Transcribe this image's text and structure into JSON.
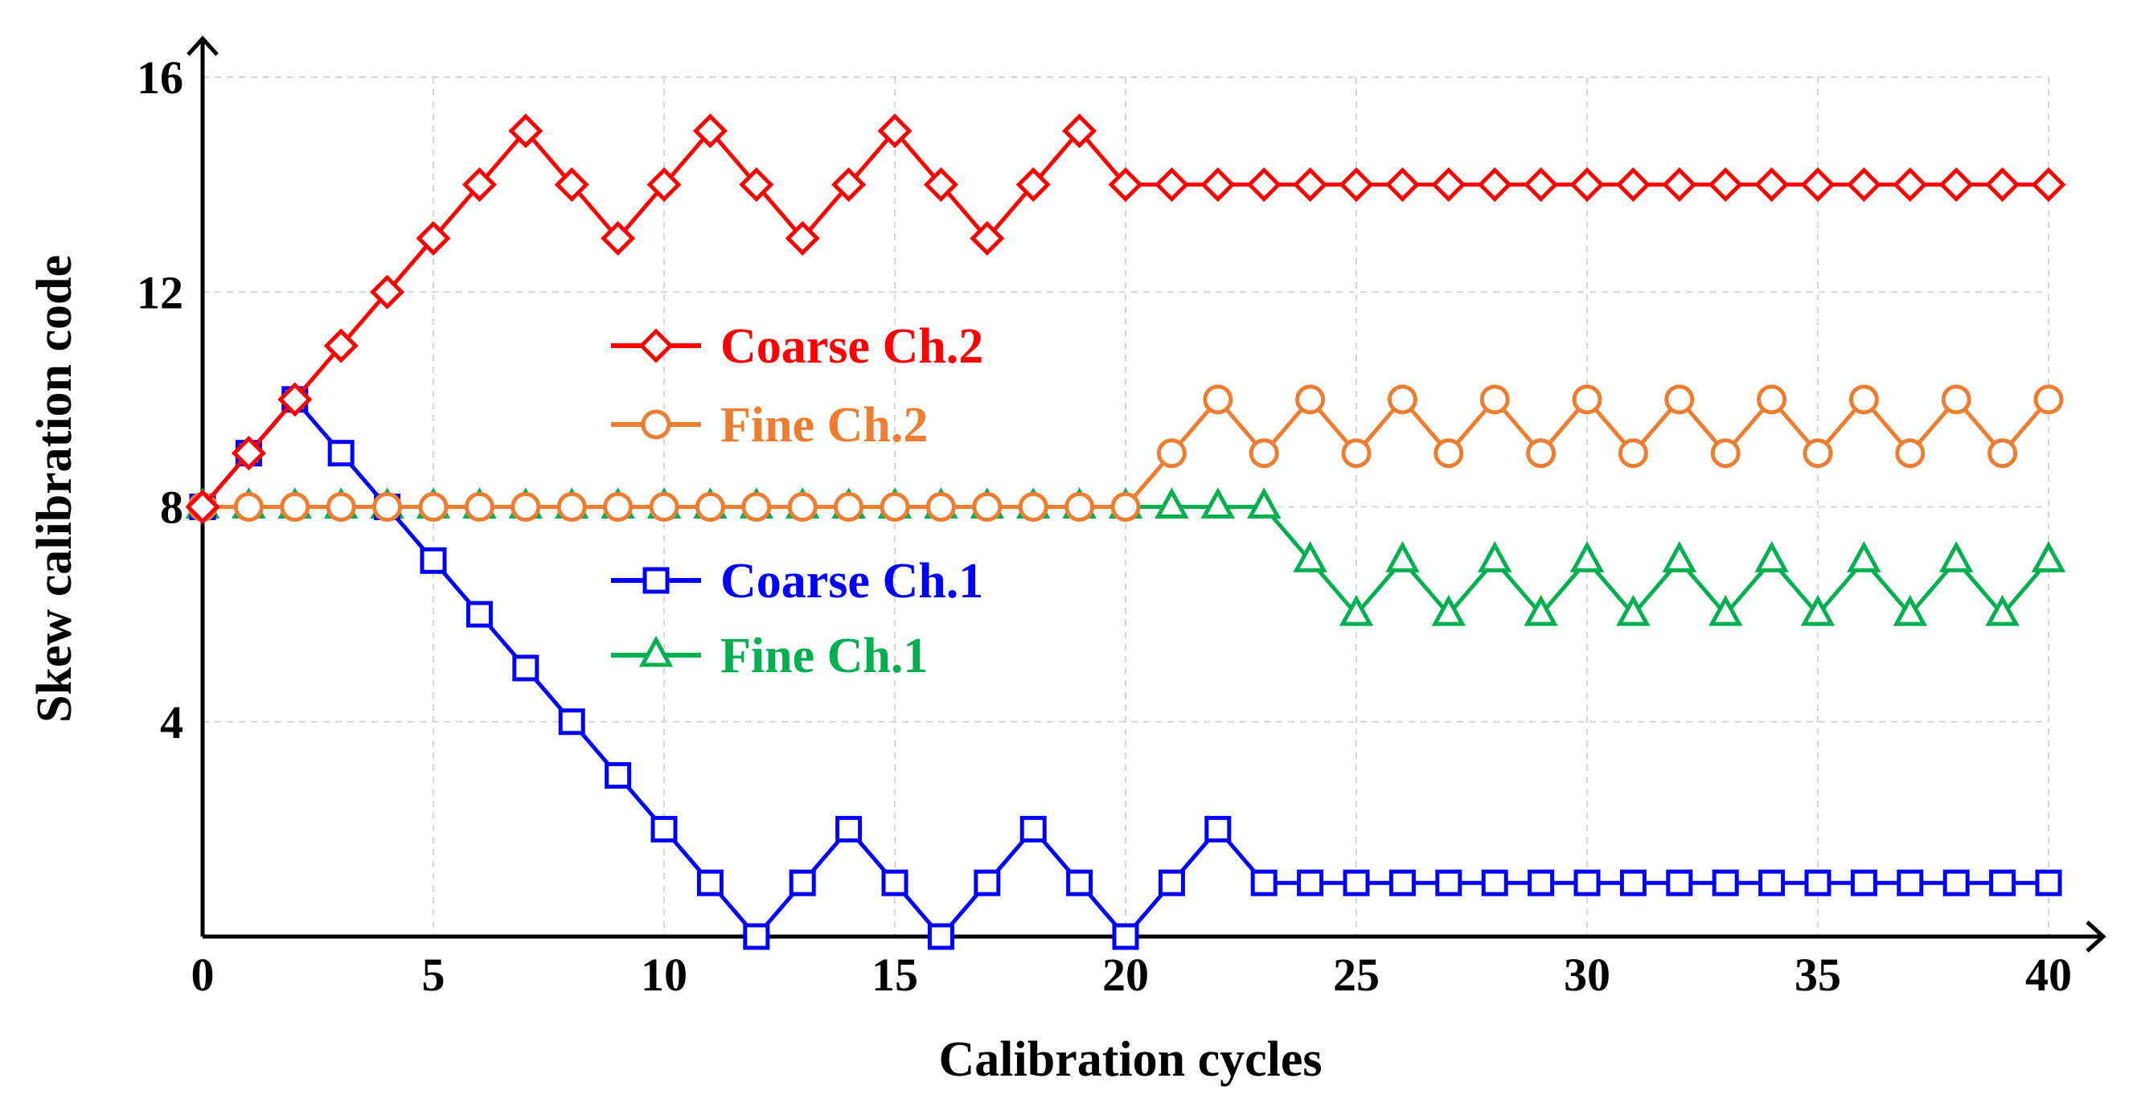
{
  "chart_data": {
    "type": "line",
    "xlabel": "Calibration cycles",
    "ylabel": "Skew calibration code",
    "xlim": [
      0,
      40
    ],
    "ylim": [
      0,
      16
    ],
    "xticks": [
      0,
      5,
      10,
      15,
      20,
      25,
      30,
      35,
      40
    ],
    "yticks": [
      4,
      8,
      12,
      16
    ],
    "grid": true,
    "legend_position": "center-left",
    "x": [
      0,
      1,
      2,
      3,
      4,
      5,
      6,
      7,
      8,
      9,
      10,
      11,
      12,
      13,
      14,
      15,
      16,
      17,
      18,
      19,
      20,
      21,
      22,
      23,
      24,
      25,
      26,
      27,
      28,
      29,
      30,
      31,
      32,
      33,
      34,
      35,
      36,
      37,
      38,
      39,
      40
    ],
    "series": [
      {
        "name": "Coarse Ch.2",
        "color": "#ff0000",
        "marker": "diamond",
        "values": [
          8,
          9,
          10,
          11,
          12,
          13,
          14,
          15,
          14,
          13,
          14,
          15,
          14,
          13,
          14,
          15,
          14,
          13,
          14,
          15,
          14,
          14,
          14,
          14,
          14,
          14,
          14,
          14,
          14,
          14,
          14,
          14,
          14,
          14,
          14,
          14,
          14,
          14,
          14,
          14,
          14
        ]
      },
      {
        "name": "Fine Ch.2",
        "color": "#ed7d31",
        "marker": "circle",
        "values": [
          8,
          8,
          8,
          8,
          8,
          8,
          8,
          8,
          8,
          8,
          8,
          8,
          8,
          8,
          8,
          8,
          8,
          8,
          8,
          8,
          8,
          9,
          10,
          9,
          10,
          9,
          10,
          9,
          10,
          9,
          10,
          9,
          10,
          9,
          10,
          9,
          10,
          9,
          10,
          9,
          10
        ]
      },
      {
        "name": "Coarse Ch.1",
        "color": "#0000ff",
        "marker": "square",
        "values": [
          8,
          9,
          10,
          9,
          8,
          7,
          6,
          5,
          4,
          3,
          2,
          1,
          0,
          1,
          2,
          1,
          0,
          1,
          2,
          1,
          0,
          1,
          2,
          1,
          1,
          1,
          1,
          1,
          1,
          1,
          1,
          1,
          1,
          1,
          1,
          1,
          1,
          1,
          1,
          1,
          1
        ]
      },
      {
        "name": "Fine Ch.1",
        "color": "#00b050",
        "marker": "triangle",
        "values": [
          8,
          8,
          8,
          8,
          8,
          8,
          8,
          8,
          8,
          8,
          8,
          8,
          8,
          8,
          8,
          8,
          8,
          8,
          8,
          8,
          8,
          8,
          8,
          8,
          7,
          6,
          7,
          6,
          7,
          6,
          7,
          6,
          7,
          6,
          7,
          6,
          7,
          6,
          7,
          6,
          7
        ]
      }
    ]
  }
}
